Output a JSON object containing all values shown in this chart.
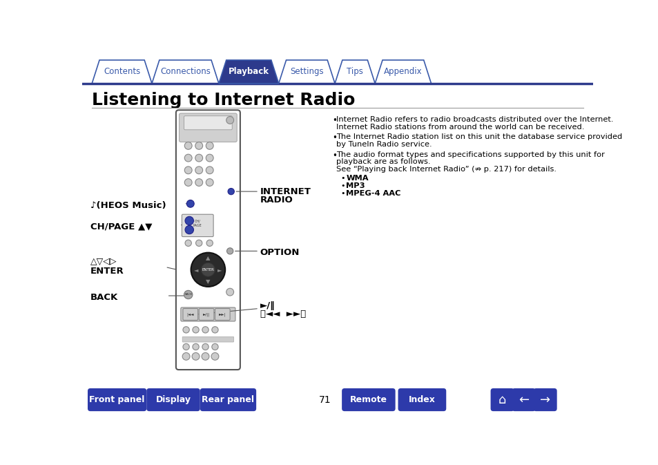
{
  "title": "Listening to Internet Radio",
  "tabs": [
    "Contents",
    "Connections",
    "Playback",
    "Settings",
    "Tips",
    "Appendix"
  ],
  "active_tab": "Playback",
  "tab_color_active": "#2d3a8c",
  "tab_color_inactive": "#ffffff",
  "tab_text_color_active": "#ffffff",
  "tab_text_color_inactive": "#3a5aaa",
  "tab_border_color": "#3a5aaa",
  "nav_line_color": "#2d3a8c",
  "bottom_buttons": [
    "Front panel",
    "Display",
    "Rear panel",
    "Remote",
    "Index"
  ],
  "bottom_button_color": "#2d3aaa",
  "bottom_button_text": "#ffffff",
  "page_number": "71",
  "background_color": "#ffffff",
  "body_text_color": "#000000",
  "label_text_color": "#000000",
  "line_color": "#888888"
}
